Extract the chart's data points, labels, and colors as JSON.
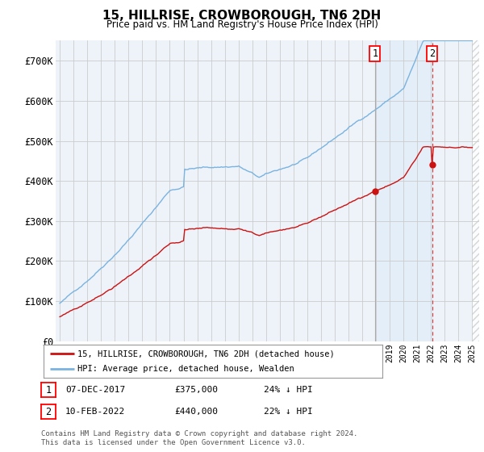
{
  "title": "15, HILLRISE, CROWBOROUGH, TN6 2DH",
  "subtitle": "Price paid vs. HM Land Registry's House Price Index (HPI)",
  "ylim": [
    0,
    750000
  ],
  "yticks": [
    0,
    100000,
    200000,
    300000,
    400000,
    500000,
    600000,
    700000
  ],
  "ytick_labels": [
    "£0",
    "£100K",
    "£200K",
    "£300K",
    "£400K",
    "£500K",
    "£600K",
    "£700K"
  ],
  "hpi_color": "#7ab3e0",
  "hpi_fill_color": "#daeaf7",
  "price_color": "#cc1111",
  "annotation1_price": 375000,
  "annotation2_price": 440000,
  "vline1_color": "#aaaaaa",
  "vline2_color": "#dd3333",
  "legend_entry1": "15, HILLRISE, CROWBOROUGH, TN6 2DH (detached house)",
  "legend_entry2": "HPI: Average price, detached house, Wealden",
  "table_row1": [
    "1",
    "07-DEC-2017",
    "£375,000",
    "24% ↓ HPI"
  ],
  "table_row2": [
    "2",
    "10-FEB-2022",
    "£440,000",
    "22% ↓ HPI"
  ],
  "footer": "Contains HM Land Registry data © Crown copyright and database right 2024.\nThis data is licensed under the Open Government Licence v3.0.",
  "background_color": "#eef3fa",
  "hatch_color": "#cccccc"
}
